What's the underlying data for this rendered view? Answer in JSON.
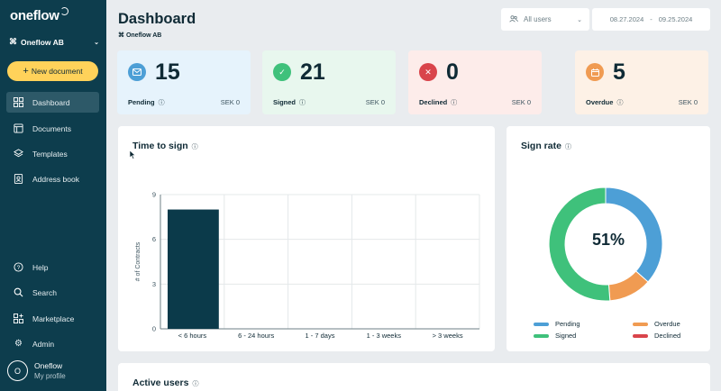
{
  "sidebar": {
    "logo": "oneflow",
    "org": "Oneflow AB",
    "new_document": "New document",
    "items": [
      {
        "label": "Dashboard"
      },
      {
        "label": "Documents"
      },
      {
        "label": "Templates"
      },
      {
        "label": "Address book"
      },
      {
        "label": "Help"
      },
      {
        "label": "Search"
      },
      {
        "label": "Marketplace"
      },
      {
        "label": "Admin"
      }
    ],
    "profile": {
      "initial": "O",
      "name": "Oneflow",
      "subtitle": "My profile"
    }
  },
  "header": {
    "title": "Dashboard",
    "org": "Oneflow AB",
    "user_filter": "All users",
    "date_from": "08.27.2024",
    "date_separator": "-",
    "date_to": "09.25.2024"
  },
  "stats": [
    {
      "count": "15",
      "label": "Pending",
      "amount": "SEK 0",
      "color": "#4d9fd6",
      "bg": "#e6f3fc",
      "icon": "envelope-icon"
    },
    {
      "count": "21",
      "label": "Signed",
      "amount": "SEK 0",
      "color": "#3fc17b",
      "bg": "#e8f7ee",
      "icon": "check-icon"
    },
    {
      "count": "0",
      "label": "Declined",
      "amount": "SEK 0",
      "color": "#d9444b",
      "bg": "#fdecea",
      "icon": "x-icon"
    },
    {
      "count": "5",
      "label": "Overdue",
      "amount": "SEK 0",
      "color": "#f09b52",
      "bg": "#fdf1e6",
      "icon": "calendar-icon"
    }
  ],
  "time_to_sign": {
    "title": "Time to sign"
  },
  "chart_data": {
    "type": "bar",
    "categories": [
      "< 6 hours",
      "6 - 24 hours",
      "1 - 7 days",
      "1 - 3 weeks",
      "> 3 weeks"
    ],
    "values": [
      8,
      0,
      0,
      0,
      0
    ],
    "ylabel": "# of Contracts",
    "ylim": [
      0,
      9
    ],
    "yticks": [
      0,
      3,
      6,
      9
    ],
    "bar_color": "#0b3a4a",
    "grid": true
  },
  "sign_rate": {
    "title": "Sign rate",
    "center_label": "51%",
    "segments": [
      {
        "name": "Pending",
        "value": 15,
        "color": "#4d9fd6"
      },
      {
        "name": "Overdue",
        "value": 5,
        "color": "#f09b52"
      },
      {
        "name": "Signed",
        "value": 21,
        "color": "#3fc17b"
      },
      {
        "name": "Declined",
        "value": 0,
        "color": "#d9444b"
      }
    ]
  },
  "active_users": {
    "title": "Active users"
  }
}
